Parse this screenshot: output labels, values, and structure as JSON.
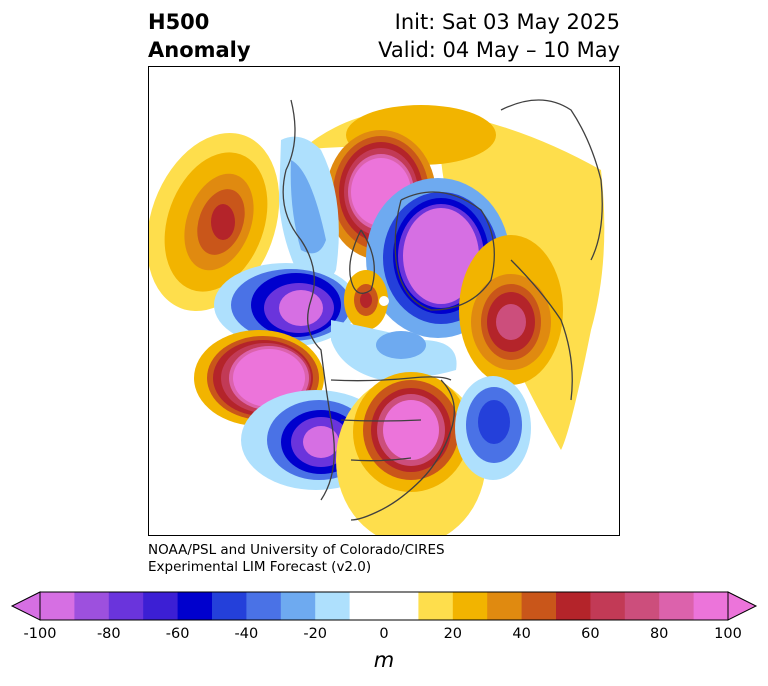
{
  "header": {
    "title_line1": "H500",
    "title_line2": "Anomaly",
    "init_text": "Init: Sat 03 May 2025",
    "valid_text": "Valid: 04 May – 10 May"
  },
  "credit": {
    "line1": "NOAA/PSL and University of Colorado/CIRES",
    "line2": "Experimental LIM Forecast (v2.0)"
  },
  "colorbar": {
    "unit": "m",
    "tick_labels": [
      "-100",
      "-80",
      "-60",
      "-40",
      "-20",
      "0",
      "20",
      "40",
      "60",
      "80",
      "100"
    ],
    "colors": [
      "#d66fe3",
      "#9d50de",
      "#6a34dc",
      "#3c1fd4",
      "#0000cd",
      "#2440da",
      "#4a72e6",
      "#6eaaf0",
      "#aee0fd",
      "#ffffff",
      "#ffffff",
      "#fede4c",
      "#f2b400",
      "#e08a10",
      "#c9561a",
      "#b4242a",
      "#c23a56",
      "#cc4e7c",
      "#dc62ac",
      "#ec74da"
    ],
    "extend_low": "#d66fe3",
    "extend_high": "#ec74da"
  }
}
